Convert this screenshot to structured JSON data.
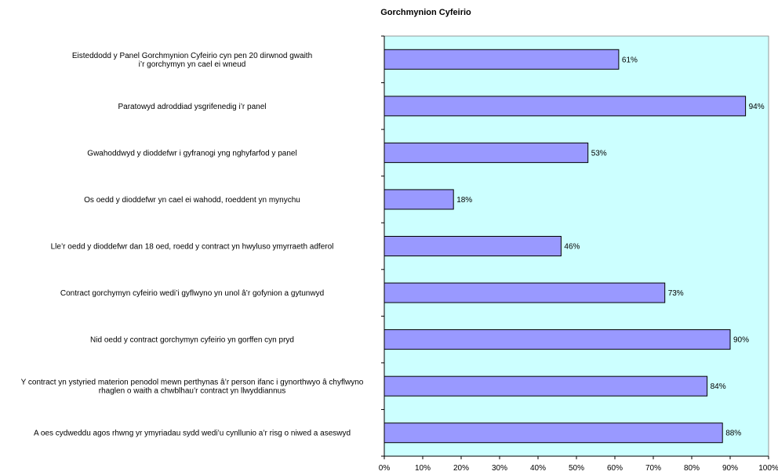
{
  "chart_data": {
    "type": "bar",
    "orientation": "horizontal",
    "title": "Gorchmynion Cyfeirio",
    "xlabel": "",
    "ylabel": "",
    "xlim": [
      0,
      100
    ],
    "x_ticks": [
      "0%",
      "10%",
      "20%",
      "30%",
      "40%",
      "50%",
      "60%",
      "70%",
      "80%",
      "90%",
      "100%"
    ],
    "grid": false,
    "legend": "none",
    "categories": [
      [
        "Eisteddodd y Panel Gorchmynion Cyfeirio cyn pen 20 dirwnod gwaith",
        "i’r gorchymyn yn cael ei wneud"
      ],
      [
        "Paratowyd adroddiad ysgrifenedig i’r panel"
      ],
      [
        "Gwahoddwyd y dioddefwr i gyfranogi yng nghyfarfod y panel"
      ],
      [
        "Os oedd y dioddefwr yn cael ei wahodd, roeddent yn mynychu"
      ],
      [
        "Lle’r oedd y dioddefwr dan 18 oed, roedd y contract yn hwyluso ymyrraeth adferol"
      ],
      [
        "Contract gorchymyn cyfeirio wedi’i gyflwyno yn unol â’r gofynion a gytunwyd"
      ],
      [
        "Nid oedd y contract gorchymyn cyfeirio yn gorffen cyn pryd"
      ],
      [
        "Y contract yn ystyried materion penodol mewn perthynas â’r person ifanc i gynorthwyo â chyflwyno",
        "rhaglen o waith a chwblhau’r contract yn llwyddiannus"
      ],
      [
        "A oes cydweddu agos rhwng yr ymyriadau sydd wedi’u cynllunio a’r risg o niwed a aseswyd"
      ]
    ],
    "values": [
      61,
      94,
      53,
      18,
      46,
      73,
      90,
      84,
      88
    ],
    "data_labels": [
      "61%",
      "94%",
      "53%",
      "18%",
      "46%",
      "73%",
      "90%",
      "84%",
      "88%"
    ],
    "colors": {
      "bar": "#9999ff",
      "bar_border": "#000000",
      "plot_background": "#ccffff",
      "axis": "#000000"
    }
  }
}
